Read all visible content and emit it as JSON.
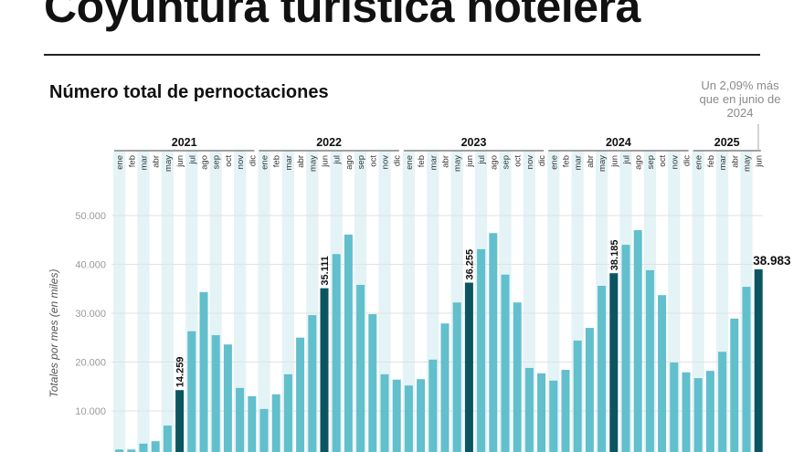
{
  "header": {
    "title": "Coyuntura turística hotelera",
    "subtitle": "Número total de pernoctaciones"
  },
  "annotation": "Un 2,09% más que en junio de 2024",
  "colors": {
    "bar": "#62bfcc",
    "highlight": "#0b5560",
    "band": "#e4f3f6",
    "grid": "#e2e2e2"
  },
  "chart_data": {
    "type": "bar",
    "title": "Número total de pernoctaciones",
    "ylabel": "Totales por mes (en miles)",
    "ylim": [
      0,
      55000
    ],
    "yticks": [
      10000,
      20000,
      30000,
      40000,
      50000
    ],
    "ytick_labels": [
      "10.000",
      "20.000",
      "30.000",
      "40.000",
      "50.000"
    ],
    "grid": true,
    "years": [
      {
        "label": "2021",
        "months": [
          "ene",
          "feb",
          "mar",
          "abr",
          "may",
          "jun",
          "jul",
          "ago",
          "sep",
          "oct",
          "nov",
          "dic"
        ],
        "values": [
          2100,
          2100,
          3300,
          3800,
          7000,
          14259,
          26300,
          34300,
          25500,
          23600,
          14700,
          13000
        ]
      },
      {
        "label": "2022",
        "months": [
          "ene",
          "feb",
          "mar",
          "abr",
          "may",
          "jun",
          "jul",
          "ago",
          "sep",
          "oct",
          "nov",
          "dic"
        ],
        "values": [
          10400,
          13400,
          17500,
          25000,
          29600,
          35111,
          42100,
          46100,
          35800,
          29800,
          17500,
          16400
        ]
      },
      {
        "label": "2023",
        "months": [
          "ene",
          "feb",
          "mar",
          "abr",
          "may",
          "jun",
          "jul",
          "ago",
          "sep",
          "oct",
          "nov",
          "dic"
        ],
        "values": [
          15200,
          16500,
          20500,
          27900,
          32200,
          36255,
          43100,
          46400,
          37900,
          32200,
          18800,
          17700
        ]
      },
      {
        "label": "2024",
        "months": [
          "ene",
          "feb",
          "mar",
          "abr",
          "may",
          "jun",
          "jul",
          "ago",
          "sep",
          "oct",
          "nov",
          "dic"
        ],
        "values": [
          16200,
          18400,
          24400,
          27000,
          35600,
          38185,
          44000,
          47000,
          38800,
          33700,
          19900,
          17900
        ]
      },
      {
        "label": "2025",
        "months": [
          "ene",
          "feb",
          "mar",
          "abr",
          "may",
          "jun"
        ],
        "values": [
          16700,
          18200,
          22100,
          28900,
          35400,
          38983
        ]
      }
    ],
    "highlight_month": "jun",
    "data_labels": {
      "2021-jun": "14.259",
      "2022-jun": "35.111",
      "2023-jun": "36.255",
      "2024-jun": "38.185",
      "2025-jun": "38.983"
    }
  }
}
